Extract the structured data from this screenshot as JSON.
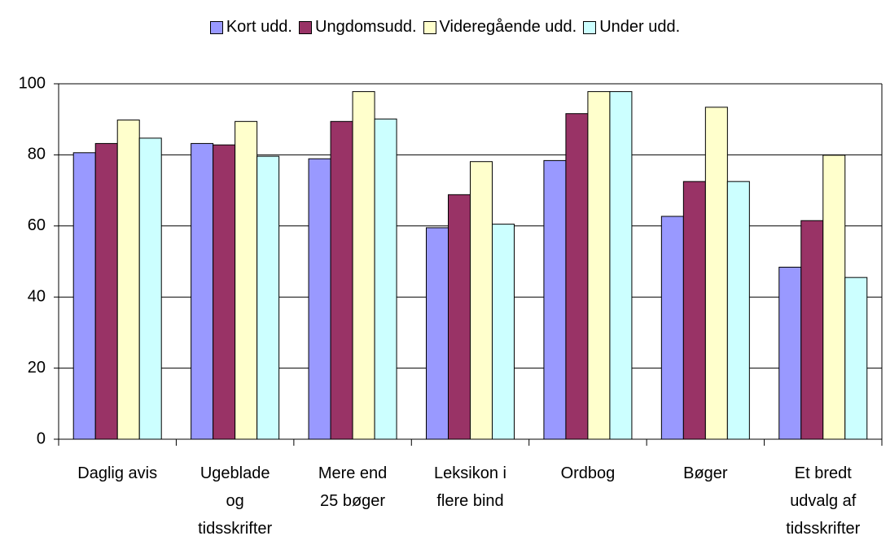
{
  "chart_data": {
    "type": "bar",
    "categories": [
      "Daglig avis",
      "Ugeblade og tidsskrifter",
      "Mere end 25 bøger",
      "Leksikon i flere bind",
      "Ordbog",
      "Bøger",
      "Et bredt udvalg af tidsskrifter"
    ],
    "series": [
      {
        "name": "Kort udd.",
        "color": "#9999ff",
        "values": [
          80.6,
          83.2,
          78.9,
          59.5,
          78.4,
          62.7,
          48.4
        ]
      },
      {
        "name": "Ungdomsudd.",
        "color": "#993366",
        "values": [
          83.2,
          82.8,
          89.4,
          68.8,
          91.6,
          72.5,
          61.5
        ]
      },
      {
        "name": "Videregående udd.",
        "color": "#ffffcc",
        "values": [
          89.8,
          89.4,
          97.8,
          78.1,
          97.8,
          93.4,
          79.9
        ]
      },
      {
        "name": "Under udd.",
        "color": "#ccffff",
        "values": [
          84.7,
          79.6,
          90.1,
          60.5,
          97.8,
          72.5,
          45.5
        ]
      }
    ],
    "ylim": [
      0,
      100
    ],
    "yticks": [
      0,
      20,
      40,
      60,
      80,
      100
    ],
    "grid": true,
    "legend": "top"
  }
}
